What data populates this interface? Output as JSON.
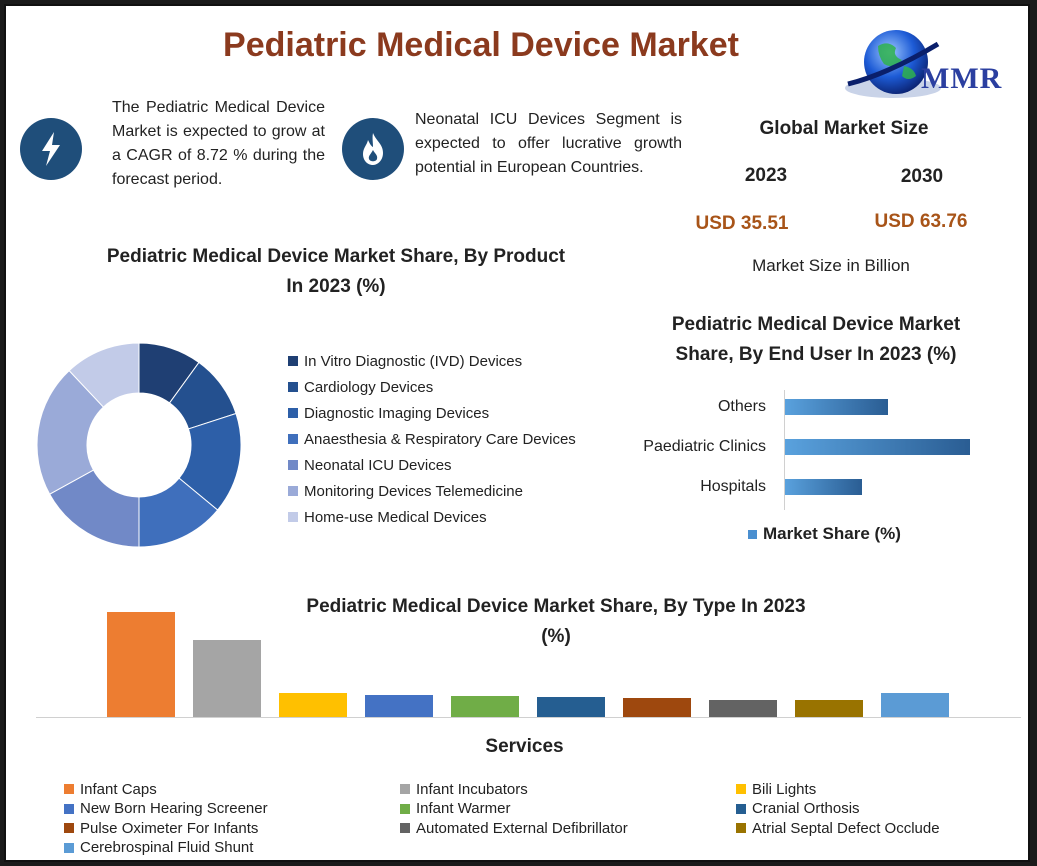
{
  "header": {
    "title": "Pediatric Medical Device Market",
    "logo_text": "MMR"
  },
  "info": {
    "cagr_text": "The Pediatric Medical Device Market is expected to grow at a CAGR of 8.72 % during the forecast period.",
    "icu_text": "Neonatal ICU Devices Segment is expected to offer lucrative growth potential in European Countries.",
    "cagr_icon": "lightning-icon",
    "icu_icon": "flame-icon"
  },
  "market_size": {
    "title": "Global Market Size",
    "year1": "2023",
    "year2": "2030",
    "value1": "USD 35.51",
    "value2": "USD 63.76",
    "note": "Market Size in Billion"
  },
  "chart_data": [
    {
      "type": "pie",
      "title": "Pediatric Medical Device Market  Share, By Product In 2023 (%)",
      "categories": [
        "In Vitro Diagnostic (IVD) Devices",
        "Cardiology Devices",
        "Diagnostic Imaging Devices",
        "Anaesthesia & Respiratory Care Devices",
        "Neonatal ICU Devices",
        "Monitoring Devices Telemedicine",
        "Home-use Medical Devices"
      ],
      "values": [
        10,
        10,
        16,
        14,
        17,
        21,
        12
      ],
      "colors": [
        "#1f3f73",
        "#24508f",
        "#2d5fa8",
        "#3f6fbc",
        "#7189c7",
        "#9aaad8",
        "#c2cbe8"
      ]
    },
    {
      "type": "bar",
      "orientation": "horizontal",
      "title": "Pediatric Medical Device Market  Share, By End User In 2023 (%)",
      "categories": [
        "Others",
        "Paediatric Clinics",
        "Hospitals"
      ],
      "values": [
        28,
        50,
        21
      ],
      "xlim": [
        0,
        50
      ],
      "legend": "Market Share (%)",
      "color": "#4a8fd0"
    },
    {
      "type": "bar",
      "title": "Pediatric Medical Device Market  Share, By Type In 2023 (%)",
      "xlabel": "Services",
      "categories": [
        "Infant Caps",
        "Infant Incubators",
        "Bili Lights",
        "New Born Hearing Screener",
        "Infant Warmer",
        "Cranial Orthosis",
        "Pulse Oximeter For Infants",
        "Automated External Defibrillator",
        "Atrial Septal Defect Occlude",
        "Cerebrospinal Fluid Shunt"
      ],
      "values": [
        30,
        22,
        7,
        6.3,
        6,
        5.6,
        5.3,
        5,
        4.8,
        7
      ],
      "ylim": [
        0,
        30
      ],
      "colors": [
        "#ed7d31",
        "#a5a5a5",
        "#ffc000",
        "#4472c4",
        "#70ad47",
        "#255e91",
        "#9e480e",
        "#636363",
        "#997300",
        "#5b9bd5"
      ]
    }
  ]
}
